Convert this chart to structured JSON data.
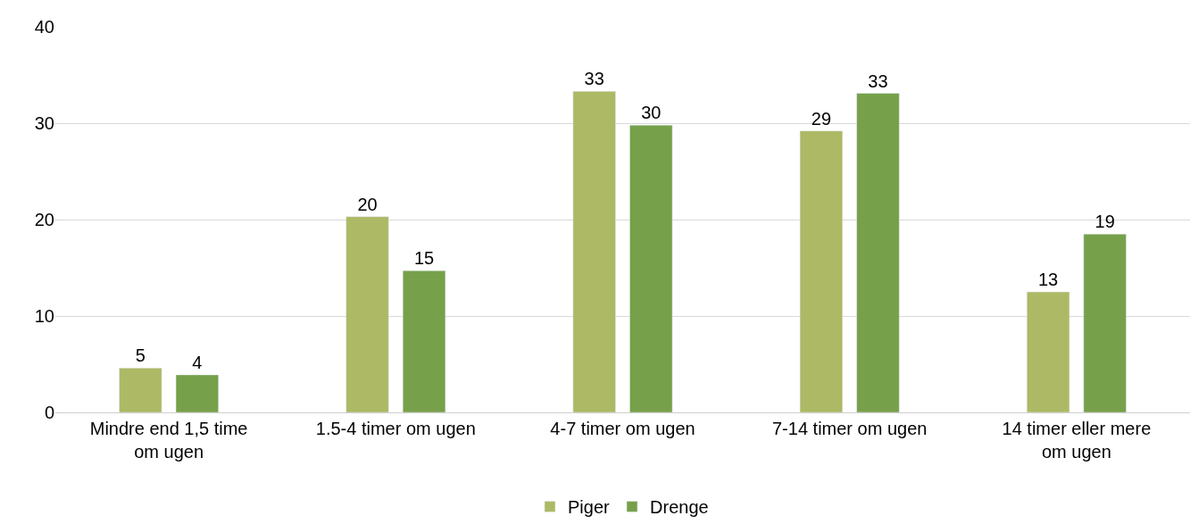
{
  "chart_data": {
    "type": "bar",
    "categories": [
      "Mindre end 1,5 time om ugen",
      "1.5-4 timer om ugen",
      "4-7 timer om ugen",
      "7-14 timer om ugen",
      "14 timer eller mere om ugen"
    ],
    "series": [
      {
        "name": "Piger",
        "color": "#adb964",
        "values": [
          4.6,
          20.3,
          33.3,
          29.2,
          12.5
        ],
        "value_labels": [
          "5",
          "20",
          "33",
          "29",
          "13"
        ]
      },
      {
        "name": "Drenge",
        "color": "#77a04a",
        "values": [
          3.9,
          14.7,
          29.8,
          33.1,
          18.5
        ],
        "value_labels": [
          "4",
          "15",
          "30",
          "33",
          "19"
        ]
      }
    ],
    "ylim": [
      0,
      40
    ],
    "yticks": [
      0,
      10,
      20,
      30,
      40
    ],
    "grid": "y",
    "legend": "bottom"
  }
}
